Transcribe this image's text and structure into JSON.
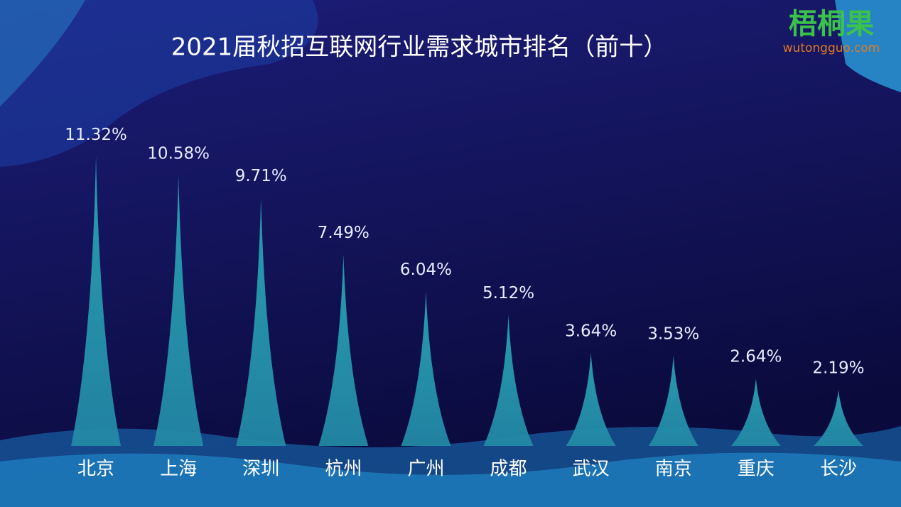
{
  "chart_data": {
    "type": "spike",
    "title": "2021届秋招互联网行业需求城市排名（前十）",
    "logo": {
      "name": "梧桐果",
      "url": "wutongguo.com"
    },
    "categories": [
      "北京",
      "上海",
      "深圳",
      "杭州",
      "广州",
      "成都",
      "武汉",
      "南京",
      "重庆",
      "长沙"
    ],
    "values": [
      11.32,
      10.58,
      9.71,
      7.49,
      6.04,
      5.12,
      3.64,
      3.53,
      2.64,
      2.19
    ],
    "value_labels": [
      "11.32%",
      "10.58%",
      "9.71%",
      "7.49%",
      "6.04%",
      "5.12%",
      "3.64%",
      "3.53%",
      "2.64%",
      "2.19%"
    ],
    "color": "#2aa3b3"
  }
}
